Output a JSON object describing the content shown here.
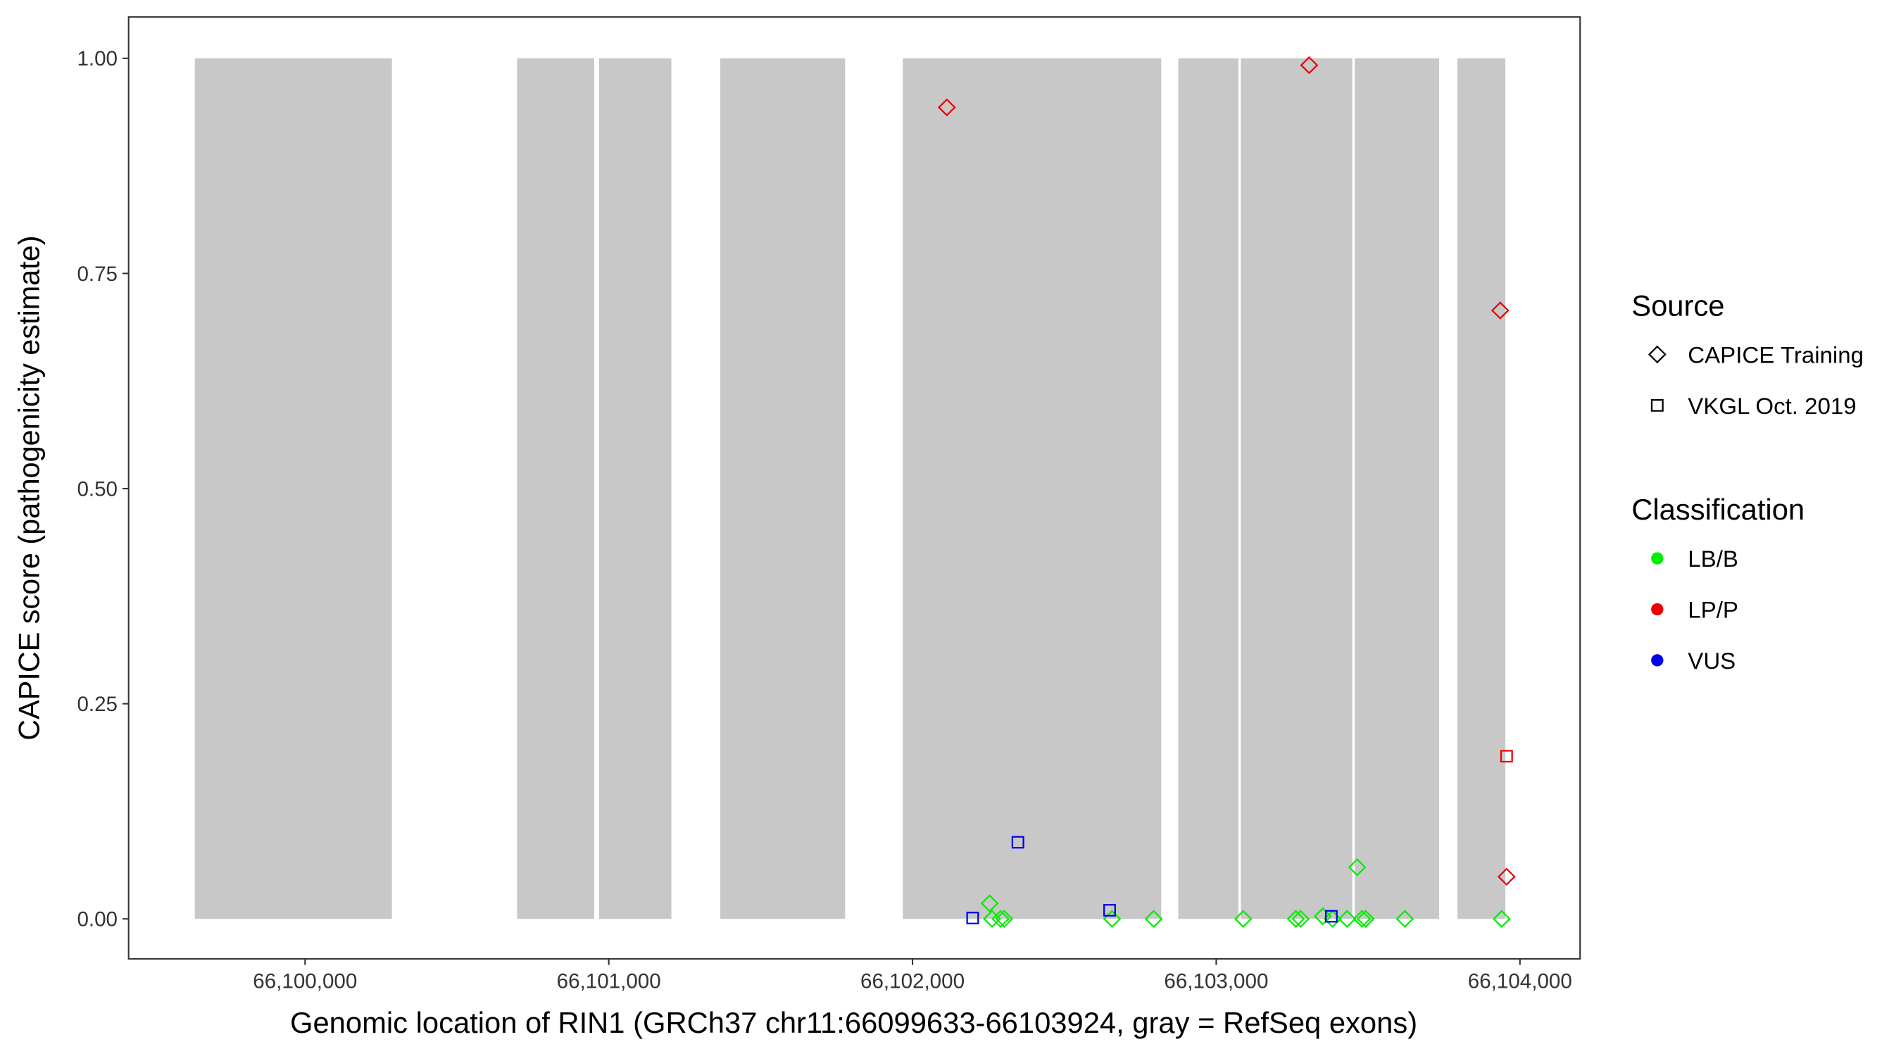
{
  "chart_data": {
    "type": "scatter",
    "x_label": "Genomic location of RIN1 (GRCh37 chr11:66099633-66103924, gray = RefSeq exons)",
    "y_label": "CAPICE score (pathogenicity estimate)",
    "xlim": [
      66099419,
      66104198
    ],
    "ylim": [
      -0.0465,
      1.048
    ],
    "xticks": [
      {
        "value": 66100000,
        "label": "66,100,000"
      },
      {
        "value": 66101000,
        "label": "66,101,000"
      },
      {
        "value": 66102000,
        "label": "66,102,000"
      },
      {
        "value": 66103000,
        "label": "66,103,000"
      },
      {
        "value": 66104000,
        "label": "66,104,000"
      }
    ],
    "yticks": [
      {
        "value": 0,
        "label": "0.00"
      },
      {
        "value": 0.25,
        "label": "0.25"
      },
      {
        "value": 0.5,
        "label": "0.50"
      },
      {
        "value": 0.75,
        "label": "0.75"
      },
      {
        "value": 1,
        "label": "1.00"
      }
    ],
    "grid": false,
    "exons": {
      "color": "#c8c8c8",
      "bottom": 0,
      "top": 1,
      "starts": [
        66099637,
        66100698,
        66100968,
        66101367,
        66101968,
        66102875,
        66103081,
        66103456,
        66103794
      ],
      "ends": [
        66100286,
        66100952,
        66101206,
        66101778,
        66102819,
        66103073,
        66103448,
        66103734,
        66103952
      ]
    },
    "shape_legend": {
      "title": "Source",
      "items": [
        {
          "name": "CAPICE Training",
          "shape": "diamond"
        },
        {
          "name": "VKGL Oct. 2019",
          "shape": "square"
        }
      ]
    },
    "color_legend_title": "Classification",
    "series": [
      {
        "name": "LB/B",
        "color": "#00ee00",
        "x": [
          66102254,
          66102262,
          66102290,
          66102302,
          66102657,
          66102794,
          66103089,
          66103262,
          66103278,
          66103351,
          66103383,
          66103431,
          66103464,
          66103480,
          66103492,
          66103621,
          66103940
        ],
        "y": [
          0.018,
          0,
          0,
          0,
          0,
          0,
          0,
          0,
          0,
          0.003,
          0,
          0,
          0.06,
          0,
          0,
          0,
          0
        ],
        "shapes": [
          "diamond",
          "diamond",
          "diamond",
          "diamond",
          "diamond",
          "diamond",
          "diamond",
          "diamond",
          "diamond",
          "diamond",
          "diamond",
          "diamond",
          "diamond",
          "diamond",
          "diamond",
          "diamond",
          "diamond"
        ]
      },
      {
        "name": "LP/P",
        "color": "#ee0000",
        "x": [
          66102113,
          66103306,
          66103935,
          66103956,
          66103956
        ],
        "y": [
          0.943,
          0.992,
          0.707,
          0.049,
          0.189
        ],
        "shapes": [
          "diamond",
          "diamond",
          "diamond",
          "diamond",
          "square"
        ]
      },
      {
        "name": "VUS",
        "color": "#0000ee",
        "x": [
          66102198,
          66102347,
          66102649,
          66103379
        ],
        "y": [
          0.001,
          0.089,
          0.01,
          0.003
        ],
        "shapes": [
          "square",
          "square",
          "square",
          "square"
        ]
      }
    ]
  }
}
